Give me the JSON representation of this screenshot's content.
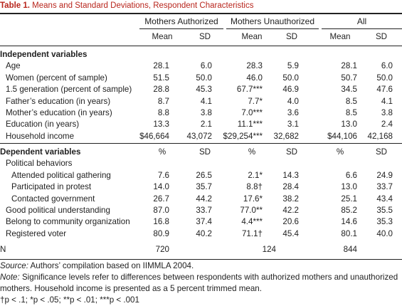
{
  "caption": {
    "label": "Table 1.",
    "text": "Means and Standard Deviations, Respondent Characteristics"
  },
  "groups": [
    "Mothers Authorized",
    "Mothers Unauthorized",
    "All"
  ],
  "independent": {
    "heading": "Independent variables",
    "subheaders": [
      "Mean",
      "SD",
      "Mean",
      "SD",
      "Mean",
      "SD"
    ],
    "rows": [
      {
        "label": "Age",
        "v": [
          "28.1",
          "6.0",
          "28.3",
          "5.9",
          "28.1",
          "6.0"
        ]
      },
      {
        "label": "Women (percent of sample)",
        "v": [
          "51.5",
          "50.0",
          "46.0",
          "50.0",
          "50.7",
          "50.0"
        ]
      },
      {
        "label": "1.5 generation (percent of sample)",
        "v": [
          "28.8",
          "45.3",
          "67.7***",
          "46.9",
          "34.5",
          "47.6"
        ]
      },
      {
        "label": "Father’s education (in years)",
        "v": [
          "8.7",
          "4.1",
          "7.7*",
          "4.0",
          "8.5",
          "4.1"
        ]
      },
      {
        "label": "Mother’s education (in years)",
        "v": [
          "8.8",
          "3.8",
          "7.0***",
          "3.6",
          "8.5",
          "3.8"
        ]
      },
      {
        "label": "Education (in years)",
        "v": [
          "13.3",
          "2.1",
          "11.1***",
          "3.1",
          "13.0",
          "2.4"
        ]
      },
      {
        "label": "Household income",
        "v": [
          "$46,664",
          "43,072",
          "$29,254***",
          "32,682",
          "$44,106",
          "42,168"
        ]
      }
    ]
  },
  "dependent": {
    "heading": "Dependent variables",
    "subheaders": [
      "%",
      "SD",
      "%",
      "SD",
      "%",
      "SD"
    ],
    "subheading": "Political behaviors",
    "rows": [
      {
        "label": "Attended political gathering",
        "level": 3,
        "v": [
          "7.6",
          "26.5",
          "2.1*",
          "14.3",
          "6.6",
          "24.9"
        ]
      },
      {
        "label": "Participated in protest",
        "level": 3,
        "v": [
          "14.0",
          "35.7",
          "8.8†",
          "28.4",
          "13.0",
          "33.7"
        ]
      },
      {
        "label": "Contacted government",
        "level": 3,
        "v": [
          "26.7",
          "44.2",
          "17.6*",
          "38.2",
          "25.1",
          "43.4"
        ]
      },
      {
        "label": "Good political understanding",
        "level": 2,
        "v": [
          "87.0",
          "33.7",
          "77.0**",
          "42.2",
          "85.2",
          "35.5"
        ]
      },
      {
        "label": "Belong to community organization",
        "level": 2,
        "v": [
          "16.8",
          "37.4",
          "4.4***",
          "20.6",
          "14.6",
          "35.3"
        ]
      },
      {
        "label": "Registered voter",
        "level": 2,
        "v": [
          "80.9",
          "40.2",
          "71.1†",
          "45.4",
          "80.1",
          "40.0"
        ]
      }
    ]
  },
  "n_row": {
    "label": "N",
    "v": [
      "720",
      "124",
      "844"
    ]
  },
  "footnotes": {
    "source_label": "Source:",
    "source_text": " Authors’ compilation based on IIMMLA 2004.",
    "note_label": "Note:",
    "note_text": " Significance levels refer to differences between respondents with authorized mothers and unauthorized",
    "note_text2": "mothers. Household income is presented as a 5 percent trimmed mean.",
    "sig": "†p < .1; *p < .05; **p < .01; ***p < .001"
  }
}
